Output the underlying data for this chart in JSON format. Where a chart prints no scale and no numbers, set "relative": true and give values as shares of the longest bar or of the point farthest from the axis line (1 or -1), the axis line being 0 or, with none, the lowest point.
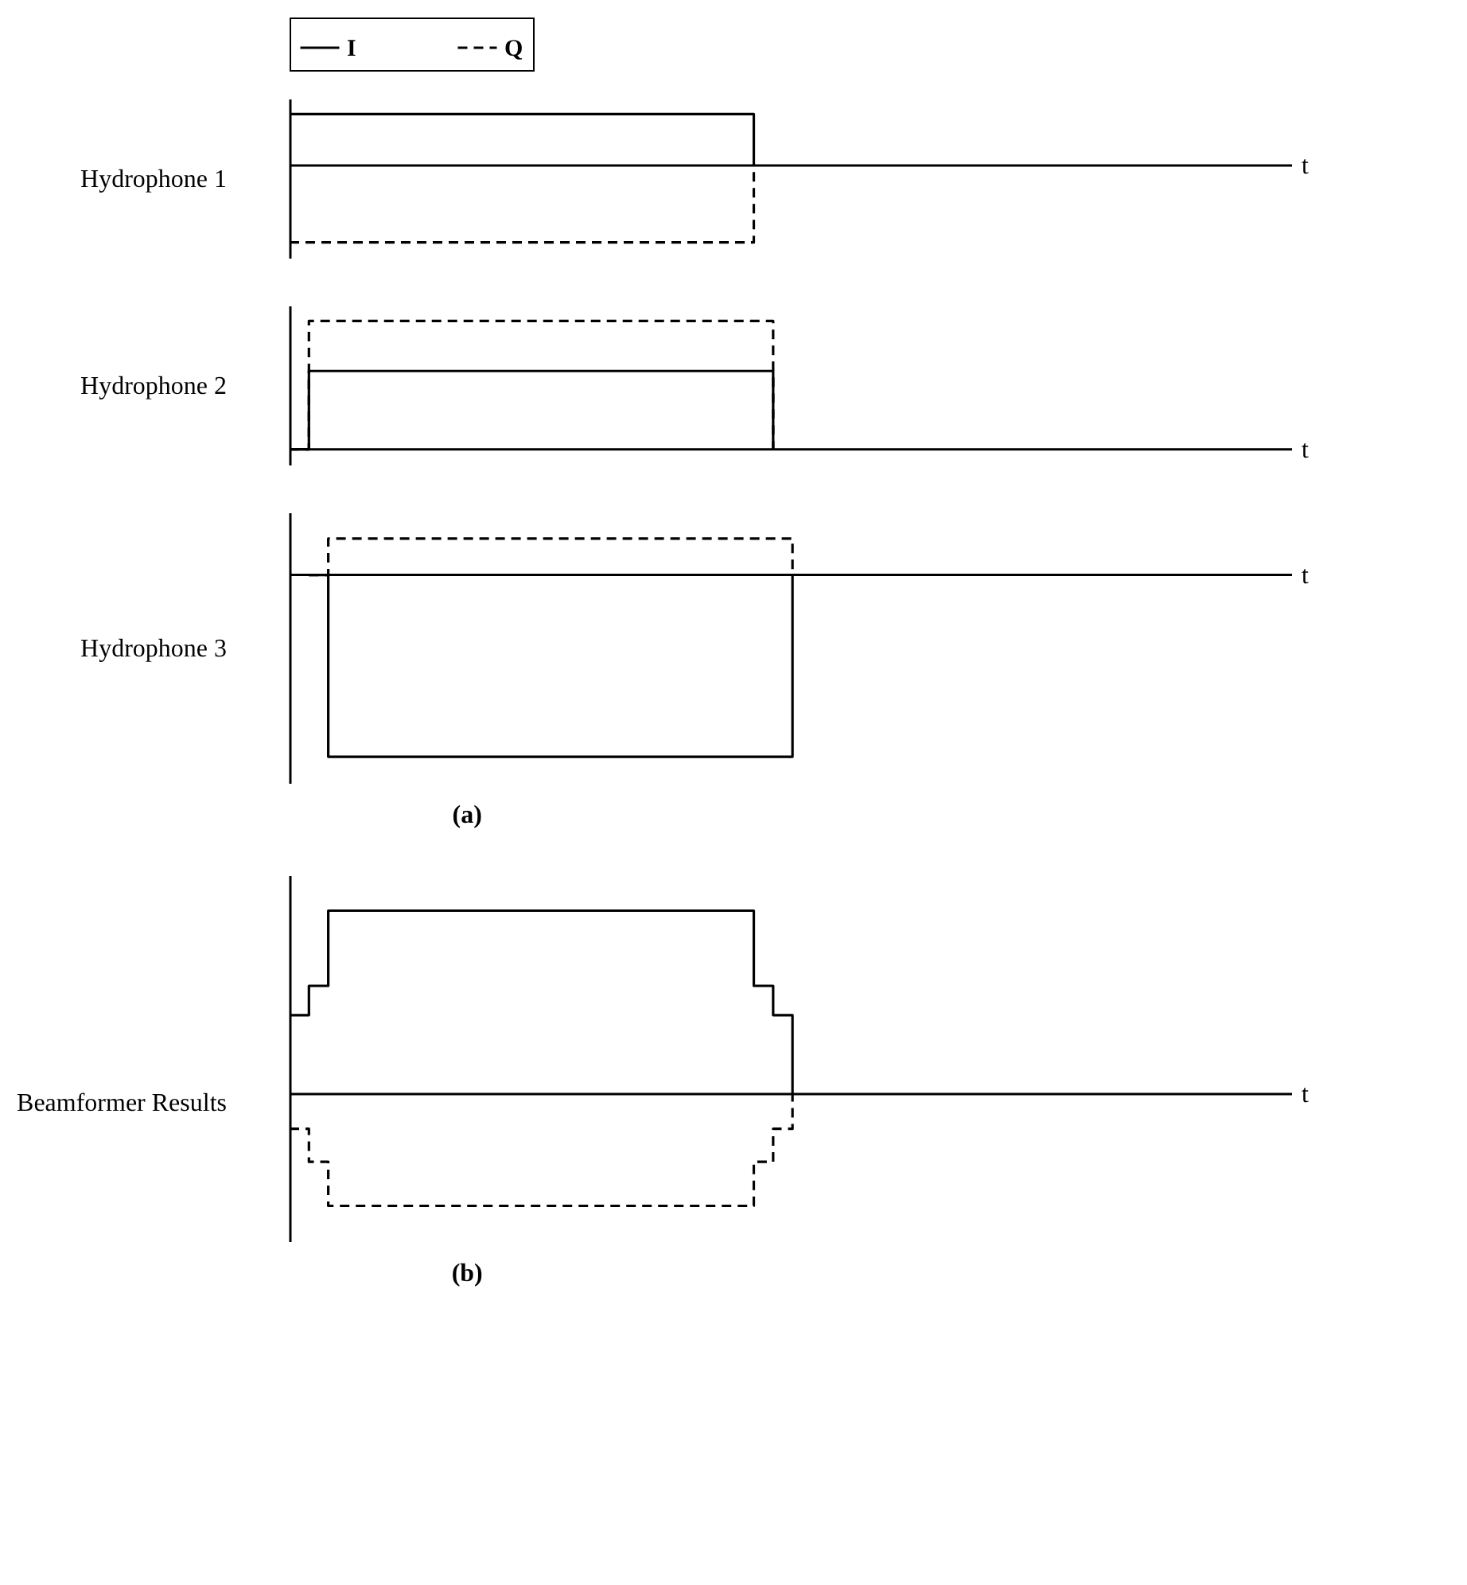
{
  "chart_data": [
    {
      "type": "step",
      "relative": true,
      "ylabel": "Hydrophone 1",
      "xlabel": "t",
      "legend": "top",
      "categories": [
        null,
        null,
        null,
        null,
        null,
        null,
        null,
        null,
        null,
        null,
        null,
        null,
        null,
        null,
        null,
        null,
        null,
        null,
        null,
        null,
        null,
        null,
        null,
        null,
        null,
        null,
        null,
        null,
        null,
        null,
        null,
        null,
        null,
        null,
        null,
        null,
        null,
        null,
        null,
        null,
        null,
        null,
        null,
        null,
        null,
        null,
        null,
        null,
        null,
        null,
        null,
        null
      ],
      "series": [
        {
          "name": "I",
          "color": "#000000",
          "line_style": "solid",
          "values": [
            0.67,
            0.67,
            0.67,
            0.67,
            0.67,
            0.67,
            0.67,
            0.67,
            0.67,
            0.67,
            0.67,
            0.67,
            0.67,
            0.67,
            0.67,
            0.67,
            0.67,
            0.67,
            0.67,
            0.67,
            0.67,
            0.67,
            0.67,
            0.67,
            0,
            null,
            null,
            null,
            null,
            null,
            null,
            null,
            null,
            null,
            null,
            null,
            null,
            null,
            null,
            null,
            null,
            null,
            null,
            null,
            null,
            null,
            null,
            null,
            null,
            null,
            null,
            null
          ]
        },
        {
          "name": "Q",
          "color": "#000000",
          "line_style": "dashed",
          "values": [
            -1,
            -1,
            -1,
            -1,
            -1,
            -1,
            -1,
            -1,
            -1,
            -1,
            -1,
            -1,
            -1,
            -1,
            -1,
            -1,
            -1,
            -1,
            -1,
            -1,
            -1,
            -1,
            -1,
            -1,
            0,
            null,
            null,
            null,
            null,
            null,
            null,
            null,
            null,
            null,
            null,
            null,
            null,
            null,
            null,
            null,
            null,
            null,
            null,
            null,
            null,
            null,
            null,
            null,
            null,
            null,
            null,
            null
          ]
        }
      ]
    },
    {
      "type": "step",
      "relative": true,
      "ylabel": "Hydrophone 2",
      "xlabel": "t",
      "categories": [
        null,
        null,
        null,
        null,
        null,
        null,
        null,
        null,
        null,
        null,
        null,
        null,
        null,
        null,
        null,
        null,
        null,
        null,
        null,
        null,
        null,
        null,
        null,
        null,
        null,
        null,
        null,
        null,
        null,
        null,
        null,
        null,
        null,
        null,
        null,
        null,
        null,
        null,
        null,
        null,
        null,
        null,
        null,
        null,
        null,
        null,
        null,
        null,
        null,
        null,
        null,
        null
      ],
      "series": [
        {
          "color": "#000000",
          "line_style": "solid",
          "values": [
            0,
            0.61,
            0.61,
            0.61,
            0.61,
            0.61,
            0.61,
            0.61,
            0.61,
            0.61,
            0.61,
            0.61,
            0.61,
            0.61,
            0.61,
            0.61,
            0.61,
            0.61,
            0.61,
            0.61,
            0.61,
            0.61,
            0.61,
            0.61,
            0.61,
            0,
            null,
            null,
            null,
            null,
            null,
            null,
            null,
            null,
            null,
            null,
            null,
            null,
            null,
            null,
            null,
            null,
            null,
            null,
            null,
            null,
            null,
            null,
            null,
            null,
            null,
            null
          ]
        },
        {
          "color": "#000000",
          "line_style": "dashed",
          "values": [
            0,
            1,
            1,
            1,
            1,
            1,
            1,
            1,
            1,
            1,
            1,
            1,
            1,
            1,
            1,
            1,
            1,
            1,
            1,
            1,
            1,
            1,
            1,
            1,
            1,
            0,
            null,
            null,
            null,
            null,
            null,
            null,
            null,
            null,
            null,
            null,
            null,
            null,
            null,
            null,
            null,
            null,
            null,
            null,
            null,
            null,
            null,
            null,
            null,
            null,
            null,
            null
          ]
        }
      ]
    },
    {
      "type": "step",
      "relative": true,
      "ylabel": "Hydrophone 3",
      "xlabel": "t",
      "annotations": [
        "(a)"
      ],
      "categories": [
        null,
        null,
        null,
        null,
        null,
        null,
        null,
        null,
        null,
        null,
        null,
        null,
        null,
        null,
        null,
        null,
        null,
        null,
        null,
        null,
        null,
        null,
        null,
        null,
        null,
        null,
        null,
        null,
        null,
        null,
        null,
        null,
        null,
        null,
        null,
        null,
        null,
        null,
        null,
        null,
        null,
        null,
        null,
        null,
        null,
        null,
        null,
        null,
        null,
        null,
        null,
        null
      ],
      "series": [
        {
          "color": "#000000",
          "line_style": "solid",
          "values": [
            null,
            0,
            -1,
            -1,
            -1,
            -1,
            -1,
            -1,
            -1,
            -1,
            -1,
            -1,
            -1,
            -1,
            -1,
            -1,
            -1,
            -1,
            -1,
            -1,
            -1,
            -1,
            -1,
            -1,
            -1,
            -1,
            0,
            null,
            null,
            null,
            null,
            null,
            null,
            null,
            null,
            null,
            null,
            null,
            null,
            null,
            null,
            null,
            null,
            null,
            null,
            null,
            null,
            null,
            null,
            null,
            null,
            null
          ]
        },
        {
          "color": "#000000",
          "line_style": "dashed",
          "values": [
            null,
            0,
            0.2,
            0.2,
            0.2,
            0.2,
            0.2,
            0.2,
            0.2,
            0.2,
            0.2,
            0.2,
            0.2,
            0.2,
            0.2,
            0.2,
            0.2,
            0.2,
            0.2,
            0.2,
            0.2,
            0.2,
            0.2,
            0.2,
            0.2,
            0.2,
            0,
            null,
            null,
            null,
            null,
            null,
            null,
            null,
            null,
            null,
            null,
            null,
            null,
            null,
            null,
            null,
            null,
            null,
            null,
            null,
            null,
            null,
            null,
            null,
            null,
            null
          ]
        }
      ]
    },
    {
      "type": "step",
      "relative": true,
      "ylabel": "Beamformer Results",
      "xlabel": "t",
      "annotations": [
        "(b)"
      ],
      "categories": [
        null,
        null,
        null,
        null,
        null,
        null,
        null,
        null,
        null,
        null,
        null,
        null,
        null,
        null,
        null,
        null,
        null,
        null,
        null,
        null,
        null,
        null,
        null,
        null,
        null,
        null,
        null,
        null,
        null,
        null,
        null,
        null,
        null,
        null,
        null,
        null,
        null,
        null,
        null,
        null,
        null,
        null,
        null,
        null,
        null,
        null,
        null,
        null,
        null,
        null,
        null,
        null
      ],
      "series": [
        {
          "color": "#000000",
          "line_style": "solid",
          "values": [
            0.43,
            0.59,
            1,
            1,
            1,
            1,
            1,
            1,
            1,
            1,
            1,
            1,
            1,
            1,
            1,
            1,
            1,
            1,
            1,
            1,
            1,
            1,
            1,
            1,
            0.59,
            0.43,
            0,
            null,
            null,
            null,
            null,
            null,
            null,
            null,
            null,
            null,
            null,
            null,
            null,
            null,
            null,
            null,
            null,
            null,
            null,
            null,
            null,
            null,
            null,
            null,
            null,
            null
          ]
        },
        {
          "color": "#000000",
          "line_style": "dashed",
          "values": [
            -0.19,
            -0.37,
            -0.61,
            -0.61,
            -0.61,
            -0.61,
            -0.61,
            -0.61,
            -0.61,
            -0.61,
            -0.61,
            -0.61,
            -0.61,
            -0.61,
            -0.61,
            -0.61,
            -0.61,
            -0.61,
            -0.61,
            -0.61,
            -0.61,
            -0.61,
            -0.61,
            -0.61,
            -0.37,
            -0.19,
            0,
            null,
            null,
            null,
            null,
            null,
            null,
            null,
            null,
            null,
            null,
            null,
            null,
            null,
            null,
            null,
            null,
            null,
            null,
            null,
            null,
            null,
            null,
            null,
            null,
            null
          ]
        }
      ]
    }
  ]
}
